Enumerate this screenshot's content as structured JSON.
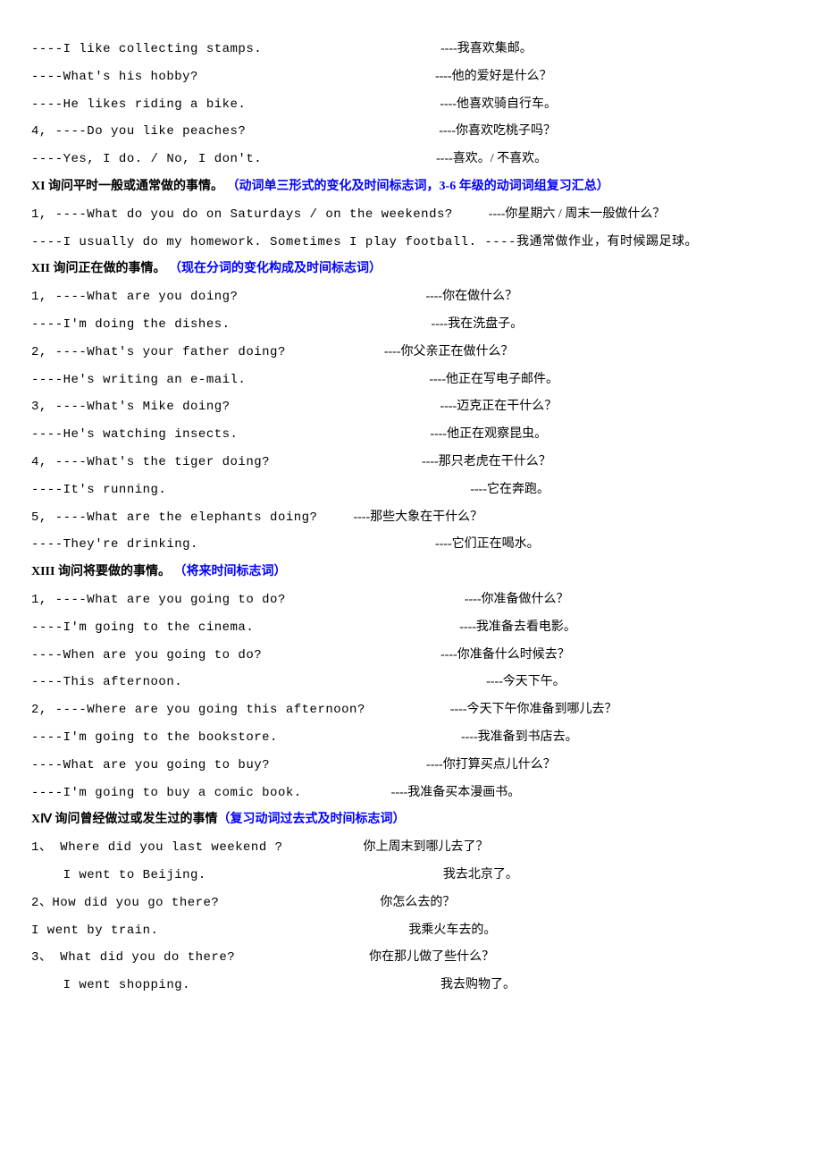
{
  "lines": [
    {
      "left": "----I like collecting stamps.",
      "leftClass": "mono",
      "gap": 200,
      "right": "----我喜欢集邮。"
    },
    {
      "left": "----What's his hobby?",
      "leftClass": "mono",
      "gap": 265,
      "right": "----他的爱好是什么？"
    },
    {
      "left": "----He likes riding a bike.",
      "leftClass": "mono",
      "gap": 217,
      "right": "----他喜欢骑自行车。"
    },
    {
      "left": "4, ----Do you like peaches?",
      "leftClass": "mono",
      "gap": 216,
      "right": "----你喜欢吃桃子吗？"
    },
    {
      "left": "----Yes, I do. / No, I don't.",
      "leftClass": "mono",
      "gap": 195,
      "right": "----喜欢。/ 不喜欢。"
    },
    {
      "type": "heading",
      "parts": [
        {
          "text": "XI  询问平时一般或通常做的事情。 ",
          "class": "black"
        },
        {
          "text": "（动词单三形式的变化及时间标志词，3-6 年级的动词词组复习汇总）",
          "class": "blue"
        }
      ]
    },
    {
      "left": "1, ----What do you do on Saturdays / on the weekends?",
      "leftClass": "mono",
      "gap": 40,
      "right": "----你星期六 / 周末一般做什么？"
    },
    {
      "left": "----I usually do my homework. Sometimes I play football. ----我通常做作业，有时候踢足球。",
      "leftClass": "mono",
      "gap": 0,
      "right": ""
    },
    {
      "type": "heading",
      "parts": [
        {
          "text": "XII  询问正在做的事情。 ",
          "class": "black"
        },
        {
          "text": "（现在分词的变化构成及时间标志词）",
          "class": "blue"
        }
      ]
    },
    {
      "left": "1, ----What are you doing?",
      "leftClass": "mono",
      "gap": 210,
      "right": "----你在做什么？"
    },
    {
      "left": "----I'm doing the dishes.",
      "leftClass": "mono",
      "gap": 225,
      "right": "----我在洗盘子。"
    },
    {
      "left": "2, ----What's your father doing?",
      "leftClass": "mono",
      "gap": 110,
      "right": "----你父亲正在做什么？"
    },
    {
      "left": "----He's writing an e-mail.",
      "leftClass": "mono",
      "gap": 205,
      "right": "----他正在写电子邮件。"
    },
    {
      "left": "3, ----What's Mike doing?",
      "leftClass": "mono",
      "gap": 235,
      "right": "----迈克正在干什么？"
    },
    {
      "left": "----He's watching insects.",
      "leftClass": "mono",
      "gap": 215,
      "right": "----他正在观察昆虫。"
    },
    {
      "left": "4, ----What's the tiger doing?",
      "leftClass": "mono",
      "gap": 170,
      "right": "----那只老虎在干什么？"
    },
    {
      "left": "----It's running.",
      "leftClass": "mono",
      "gap": 340,
      "right": "----它在奔跑。"
    },
    {
      "left": "5, ----What are the elephants doing?",
      "leftClass": "mono",
      "gap": 40,
      "right": "----那些大象在干什么？"
    },
    {
      "left": "----They're drinking.",
      "leftClass": "mono",
      "gap": 265,
      "right": "----它们正在喝水。"
    },
    {
      "type": "heading",
      "parts": [
        {
          "text": "XIII  询问将要做的事情。 ",
          "class": "black"
        },
        {
          "text": "（将来时间标志词）",
          "class": "blue"
        }
      ]
    },
    {
      "left": "1, ----What are you going to do?",
      "leftClass": "mono",
      "gap": 200,
      "right": "----你准备做什么？"
    },
    {
      "left": "----I'm going to the cinema.",
      "leftClass": "mono",
      "gap": 230,
      "right": "----我准备去看电影。"
    },
    {
      "left": "----When are you going to do?",
      "leftClass": "mono",
      "gap": 200,
      "right": "----你准备什么时候去？"
    },
    {
      "left": "----This afternoon.",
      "leftClass": "mono",
      "gap": 340,
      "right": "----今天下午。"
    },
    {
      "left": "2, ----Where are you going this afternoon?",
      "leftClass": "mono",
      "gap": 95,
      "right": "----今天下午你准备到哪儿去？"
    },
    {
      "left": "----I'm going to the bookstore.",
      "leftClass": "mono",
      "gap": 205,
      "right": "----我准备到书店去。"
    },
    {
      "left": "----What are you going to buy?",
      "leftClass": "mono",
      "gap": 175,
      "right": "----你打算买点儿什么？"
    },
    {
      "left": "----I'm going to buy a comic book.",
      "leftClass": "mono",
      "gap": 100,
      "right": "----我准备买本漫画书。"
    },
    {
      "type": "heading",
      "parts": [
        {
          "text": "XⅣ 询问曾经做过或发生过的事情",
          "class": "black"
        },
        {
          "text": "（复习动词过去式及时间标志词）",
          "class": "blue"
        }
      ]
    },
    {
      "left": "1、 Where did you last weekend ?",
      "leftClass": "mono",
      "gap": 90,
      "right": "你上周末到哪儿去了？"
    },
    {
      "left": "    I went to Beijing.",
      "leftClass": "mono",
      "gap": 265,
      "right": "我去北京了。"
    },
    {
      "left": "2、How did you go there?",
      "leftClass": "mono",
      "gap": 180,
      "right": "你怎么去的？"
    },
    {
      "left": "I went by train.",
      "leftClass": "mono",
      "gap": 280,
      "right": "我乘火车去的。"
    },
    {
      "left": "3、 What did you do there?",
      "leftClass": "mono",
      "gap": 150,
      "right": "你在那儿做了些什么？"
    },
    {
      "left": "    I went shopping.",
      "leftClass": "mono",
      "gap": 280,
      "right": "我去购物了。"
    }
  ]
}
